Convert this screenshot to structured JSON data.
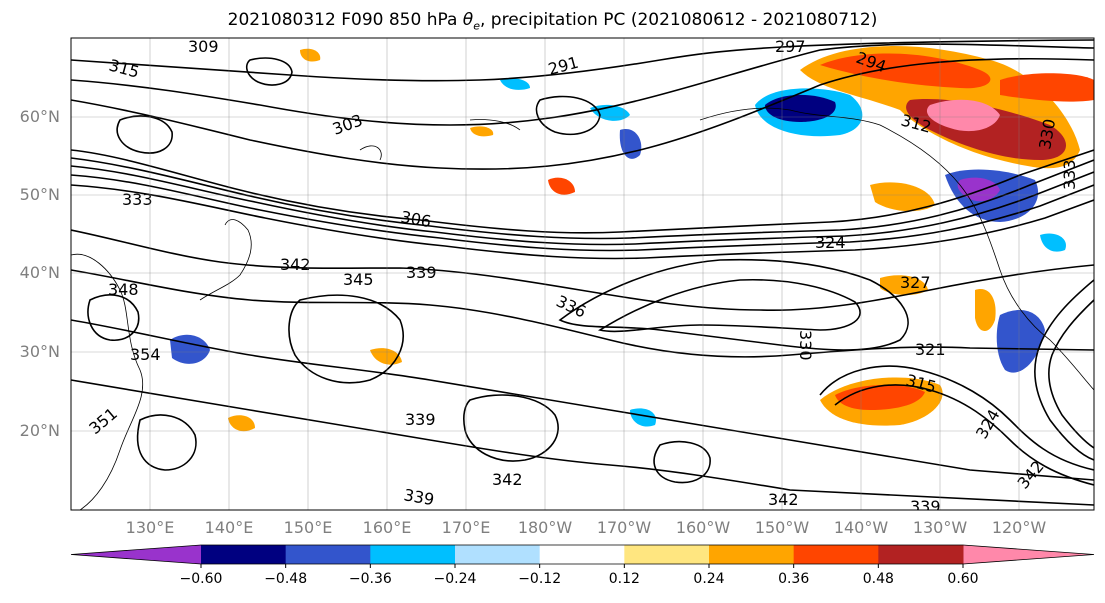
{
  "title_prefix": "2021080312 F090 850 hPa ",
  "title_symbol": "θ",
  "title_subscript": "e",
  "title_suffix": ", precipitation PC (2021080612 - 2021080712)",
  "lat_labels": [
    "60°N",
    "50°N",
    "40°N",
    "30°N",
    "20°N"
  ],
  "lon_labels": [
    "130°E",
    "140°E",
    "150°E",
    "160°E",
    "170°E",
    "180°W",
    "170°W",
    "160°W",
    "150°W",
    "140°W",
    "130°W",
    "120°W"
  ],
  "contour_labels": [
    {
      "text": "309"
    },
    {
      "text": "315"
    },
    {
      "text": "297"
    },
    {
      "text": "294"
    },
    {
      "text": "291"
    },
    {
      "text": "303"
    },
    {
      "text": "333"
    },
    {
      "text": "306"
    },
    {
      "text": "324"
    },
    {
      "text": "342"
    },
    {
      "text": "345"
    },
    {
      "text": "339"
    },
    {
      "text": "336"
    },
    {
      "text": "327"
    },
    {
      "text": "321"
    },
    {
      "text": "330"
    },
    {
      "text": "348"
    },
    {
      "text": "354"
    },
    {
      "text": "351"
    },
    {
      "text": "315"
    },
    {
      "text": "339"
    },
    {
      "text": "342"
    },
    {
      "text": "339"
    },
    {
      "text": "342"
    },
    {
      "text": "339"
    },
    {
      "text": "324"
    },
    {
      "text": "342"
    },
    {
      "text": "333"
    },
    {
      "text": "330"
    },
    {
      "text": "312"
    }
  ],
  "colorbar": {
    "colors": [
      "#9933cc",
      "#000080",
      "#3355cc",
      "#00bfff",
      "#b0e0ff",
      "#ffffff",
      "#ffe680",
      "#ffa500",
      "#ff4500",
      "#b22222",
      "#ff88aa"
    ],
    "under_color": "#9933cc",
    "over_color": "#ff88aa",
    "tick_labels": [
      "−0.60",
      "−0.48",
      "−0.36",
      "−0.24",
      "−0.12",
      "0.12",
      "0.24",
      "0.36",
      "0.48",
      "0.60"
    ]
  }
}
